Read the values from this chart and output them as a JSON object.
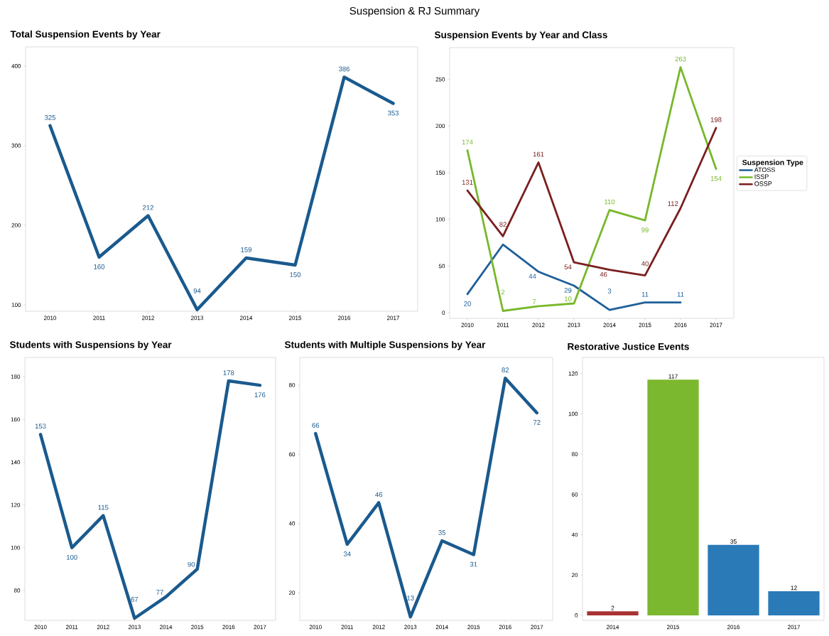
{
  "chart_data": [
    {
      "type": "line",
      "title": "Total Suspension Events by Year",
      "annotations": [
        "Suspension & RJ Summary"
      ],
      "categories": [
        "2010",
        "2011",
        "2012",
        "2013",
        "2014",
        "2015",
        "2016",
        "2017"
      ],
      "values": [
        325,
        160,
        212,
        94,
        159,
        150,
        386,
        353
      ],
      "color": "#1a5a8e",
      "ylim": [
        92,
        424
      ],
      "yticks": [
        100,
        200,
        300,
        400
      ],
      "data_labels": true
    },
    {
      "type": "line",
      "title": "Suspension Events by Year and Class",
      "legend_title": "Suspension Type",
      "legend": "right",
      "categories": [
        "2010",
        "2011",
        "2012",
        "2013",
        "2014",
        "2015",
        "2016",
        "2017"
      ],
      "ylim": [
        -6,
        284
      ],
      "yticks": [
        0,
        50,
        100,
        150,
        200,
        250
      ],
      "series": [
        {
          "name": "ATOSS",
          "color": "#1f5f99",
          "values": [
            20,
            73,
            44,
            29,
            3,
            11,
            11,
            null
          ],
          "value_labels": [
            "20",
            null,
            "44",
            "29",
            "3",
            "11",
            "11",
            null
          ]
        },
        {
          "name": "ISSP",
          "color": "#77b82a",
          "values": [
            174,
            2,
            7,
            10,
            110,
            99,
            263,
            154
          ],
          "value_labels": [
            "174",
            "2",
            "7",
            "10",
            "110",
            "99",
            "263",
            "154"
          ]
        },
        {
          "name": "OSSP",
          "color": "#7a1f1f",
          "values": [
            131,
            82,
            161,
            54,
            46,
            40,
            112,
            198
          ],
          "value_labels": [
            "131",
            "82",
            "161",
            "54",
            "46",
            "40",
            "112",
            "198"
          ]
        }
      ]
    },
    {
      "type": "line",
      "title": "Students with Suspensions by Year",
      "categories": [
        "2010",
        "2011",
        "2012",
        "2013",
        "2014",
        "2015",
        "2016",
        "2017"
      ],
      "values": [
        153,
        100,
        115,
        67,
        77,
        90,
        178,
        176
      ],
      "color": "#1a5a8e",
      "ylim": [
        66,
        189
      ],
      "yticks": [
        80,
        100,
        120,
        140,
        160,
        180
      ],
      "data_labels": true
    },
    {
      "type": "line",
      "title": "Students with Multiple Suspensions by Year",
      "categories": [
        "2010",
        "2011",
        "2012",
        "2013",
        "2014",
        "2015",
        "2016",
        "2017"
      ],
      "values": [
        66,
        34,
        46,
        13,
        35,
        31,
        82,
        72
      ],
      "color": "#1a5a8e",
      "ylim": [
        12,
        88
      ],
      "yticks": [
        20,
        40,
        60,
        80
      ],
      "data_labels": true
    },
    {
      "type": "bar",
      "title": "Restorative Justice Events",
      "categories": [
        "2014",
        "2015",
        "2016",
        "2017"
      ],
      "values": [
        2,
        117,
        35,
        12
      ],
      "colors": [
        "#a83232",
        "#7cb82f",
        "#2a7ab8",
        "#2a7ab8"
      ],
      "ylim": [
        -2.5,
        128
      ],
      "yticks": [
        0,
        20,
        40,
        60,
        80,
        100,
        120
      ],
      "data_labels": true
    }
  ]
}
